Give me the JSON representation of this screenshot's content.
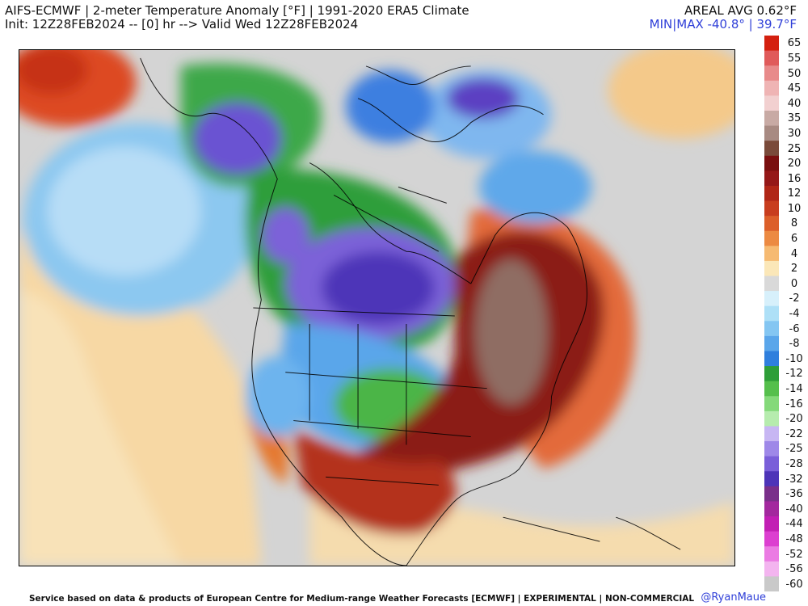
{
  "header": {
    "title_line1": "AIFS-ECMWF | 2-meter Temperature Anomaly [°F] | 1991-2020 ERA5 Climate",
    "title_line2": "Init: 12Z28FEB2024 -- [0] hr --> Valid Wed 12Z28FEB2024",
    "areal_avg": "AREAL AVG 0.62°F",
    "min_max": "MIN|MAX -40.8° | 39.7°F"
  },
  "colorbar": {
    "labels": [
      "65",
      "55",
      "50",
      "45",
      "40",
      "35",
      "30",
      "25",
      "20",
      "16",
      "12",
      "10",
      "8",
      "6",
      "4",
      "2",
      "0",
      "-2",
      "-4",
      "-6",
      "-8",
      "-10",
      "-12",
      "-14",
      "-16",
      "-20",
      "-22",
      "-25",
      "-28",
      "-32",
      "-36",
      "-40",
      "-44",
      "-48",
      "-52",
      "-56",
      "-60"
    ],
    "colors": [
      "#d4200f",
      "#e05a5a",
      "#e88a8a",
      "#efb4b4",
      "#f2d0d0",
      "#c8aaa4",
      "#a88a82",
      "#7a4a3a",
      "#7a0f0f",
      "#951818",
      "#b02617",
      "#c83d1e",
      "#dc5f2a",
      "#ec8a42",
      "#f6ba72",
      "#fbe7b8",
      "#d9d9d9",
      "#d7f0fb",
      "#aee0f7",
      "#84c6f2",
      "#5aa6ea",
      "#2f7fdd",
      "#2e9e38",
      "#55bf4c",
      "#84d97a",
      "#b6ecae",
      "#c7b6f3",
      "#9e88e8",
      "#7a5fd9",
      "#4d34b8",
      "#7a2f8a",
      "#a3289e",
      "#c21fb4",
      "#dc3fd0",
      "#eb7be3",
      "#f3b4ef",
      "#c9c9c9"
    ]
  },
  "map": {
    "country_labels": []
  },
  "footer": {
    "credit": "Service based on data & products of European Centre for Medium-range Weather Forecasts [ECMWF] | EXPERIMENTAL | NON-COMMERCIAL",
    "handle": "@RyanMaue"
  }
}
